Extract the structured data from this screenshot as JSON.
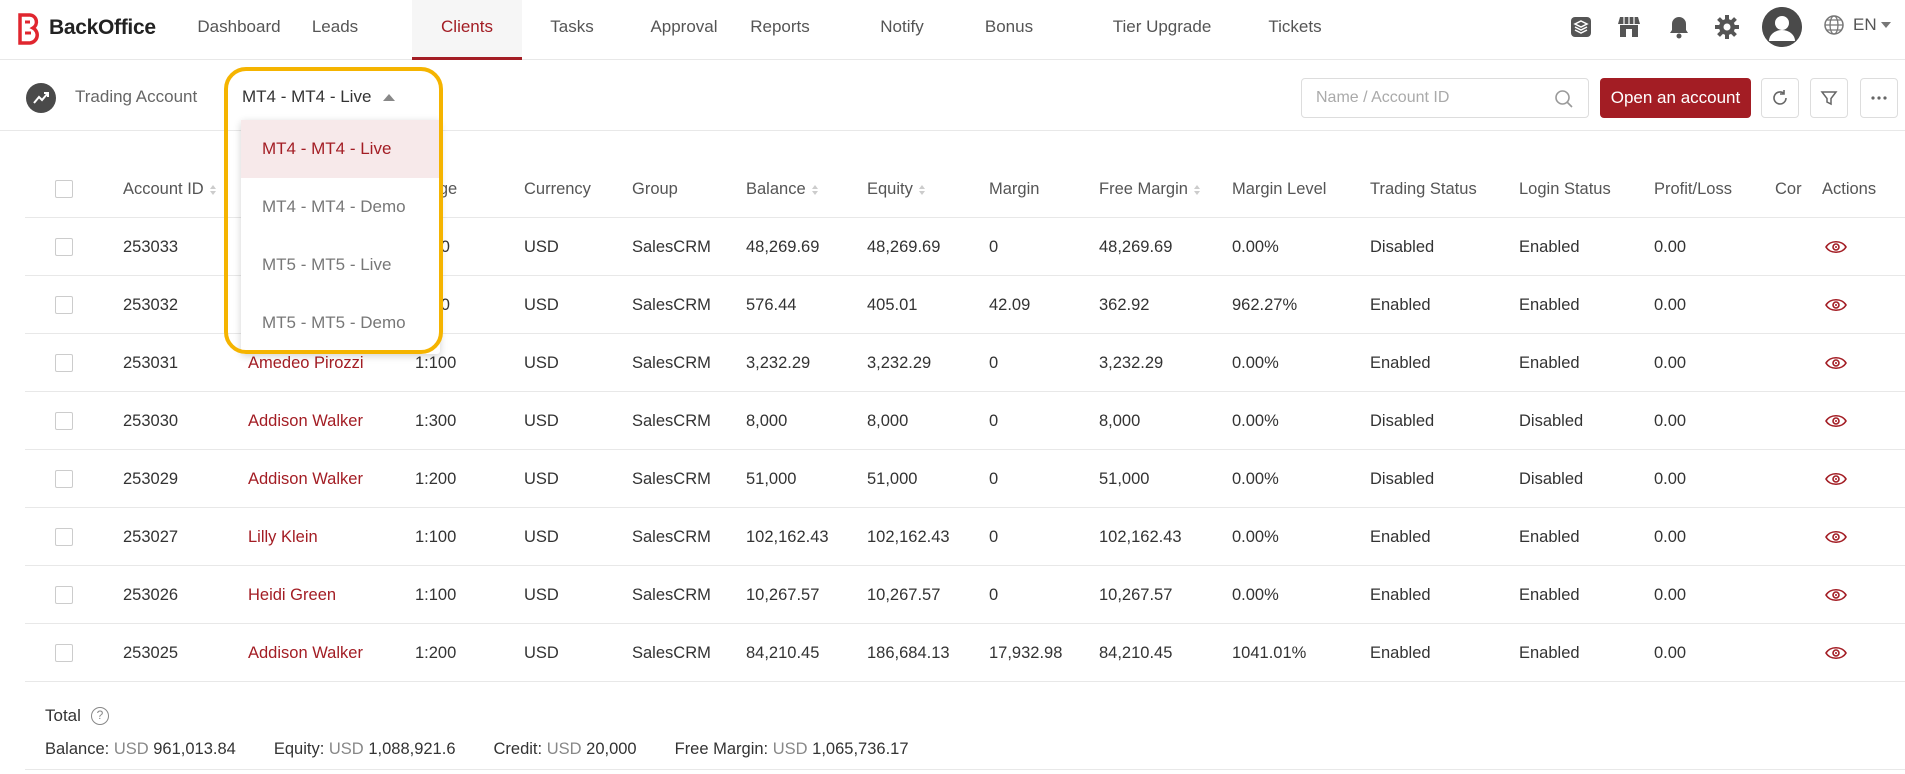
{
  "app": {
    "brand": "BackOffice",
    "brand_color": "#a31d24"
  },
  "nav": {
    "items": [
      {
        "label": "Dashboard"
      },
      {
        "label": "Leads"
      },
      {
        "label": "Clients",
        "active": true
      },
      {
        "label": "Tasks"
      },
      {
        "label": "Approval"
      },
      {
        "label": "Reports"
      },
      {
        "label": "Notify"
      },
      {
        "label": "Bonus"
      },
      {
        "label": "Tier Upgrade"
      },
      {
        "label": "Tickets"
      }
    ],
    "icons": [
      "layers-icon",
      "store-icon",
      "bell-icon",
      "gear-icon",
      "avatar",
      "globe-icon"
    ],
    "language": "EN"
  },
  "subheader": {
    "title": "Trading Account",
    "selected_account": "MT4 - MT4 - Live",
    "search_placeholder": "Name / Account ID",
    "open_button": "Open an account"
  },
  "dropdown": {
    "options": [
      "MT4 - MT4 - Live",
      "MT4 - MT4 - Demo",
      "MT5 - MT5 - Live",
      "MT5 - MT5 - Demo"
    ],
    "selected_index": 0
  },
  "table": {
    "columns": [
      "Account ID",
      "",
      "erage",
      "Currency",
      "Group",
      "Balance",
      "Equity",
      "Margin",
      "Free Margin",
      "Margin Level",
      "Trading Status",
      "Login Status",
      "Profit/Loss",
      "Cor",
      "Actions"
    ],
    "rows": [
      {
        "id": "253033",
        "name": "",
        "leverage": ":00",
        "currency": "USD",
        "group": "SalesCRM",
        "balance": "48,269.69",
        "equity": "48,269.69",
        "margin": "0",
        "free_margin": "48,269.69",
        "margin_level": "0.00%",
        "trading_status": "Disabled",
        "login_status": "Enabled",
        "pl": "0.00"
      },
      {
        "id": "253032",
        "name": "",
        "leverage": ":00",
        "currency": "USD",
        "group": "SalesCRM",
        "balance": "576.44",
        "equity": "405.01",
        "margin": "42.09",
        "free_margin": "362.92",
        "margin_level": "962.27%",
        "trading_status": "Enabled",
        "login_status": "Enabled",
        "pl": "0.00"
      },
      {
        "id": "253031",
        "name": "Amedeo Pirozzi",
        "leverage": "1:100",
        "currency": "USD",
        "group": "SalesCRM",
        "balance": "3,232.29",
        "equity": "3,232.29",
        "margin": "0",
        "free_margin": "3,232.29",
        "margin_level": "0.00%",
        "trading_status": "Enabled",
        "login_status": "Enabled",
        "pl": "0.00"
      },
      {
        "id": "253030",
        "name": "Addison Walker",
        "leverage": "1:300",
        "currency": "USD",
        "group": "SalesCRM",
        "balance": "8,000",
        "equity": "8,000",
        "margin": "0",
        "free_margin": "8,000",
        "margin_level": "0.00%",
        "trading_status": "Disabled",
        "login_status": "Disabled",
        "pl": "0.00"
      },
      {
        "id": "253029",
        "name": "Addison Walker",
        "leverage": "1:200",
        "currency": "USD",
        "group": "SalesCRM",
        "balance": "51,000",
        "equity": "51,000",
        "margin": "0",
        "free_margin": "51,000",
        "margin_level": "0.00%",
        "trading_status": "Disabled",
        "login_status": "Disabled",
        "pl": "0.00"
      },
      {
        "id": "253027",
        "name": "Lilly Klein",
        "leverage": "1:100",
        "currency": "USD",
        "group": "SalesCRM",
        "balance": "102,162.43",
        "equity": "102,162.43",
        "margin": "0",
        "free_margin": "102,162.43",
        "margin_level": "0.00%",
        "trading_status": "Enabled",
        "login_status": "Enabled",
        "pl": "0.00"
      },
      {
        "id": "253026",
        "name": "Heidi Green",
        "leverage": "1:100",
        "currency": "USD",
        "group": "SalesCRM",
        "balance": "10,267.57",
        "equity": "10,267.57",
        "margin": "0",
        "free_margin": "10,267.57",
        "margin_level": "0.00%",
        "trading_status": "Enabled",
        "login_status": "Enabled",
        "pl": "0.00"
      },
      {
        "id": "253025",
        "name": "Addison Walker",
        "leverage": "1:200",
        "currency": "USD",
        "group": "SalesCRM",
        "balance": "84,210.45",
        "equity": "186,684.13",
        "margin": "17,932.98",
        "free_margin": "84,210.45",
        "margin_level": "1041.01%",
        "trading_status": "Enabled",
        "login_status": "Enabled",
        "pl": "0.00"
      }
    ]
  },
  "totals": {
    "label": "Total",
    "items": [
      {
        "label": "Balance:",
        "currency": "USD",
        "value": "961,013.84"
      },
      {
        "label": "Equity:",
        "currency": "USD",
        "value": "1,088,921.6"
      },
      {
        "label": "Credit:",
        "currency": "USD",
        "value": "20,000"
      },
      {
        "label": "Free Margin:",
        "currency": "USD",
        "value": "1,065,736.17"
      }
    ]
  }
}
